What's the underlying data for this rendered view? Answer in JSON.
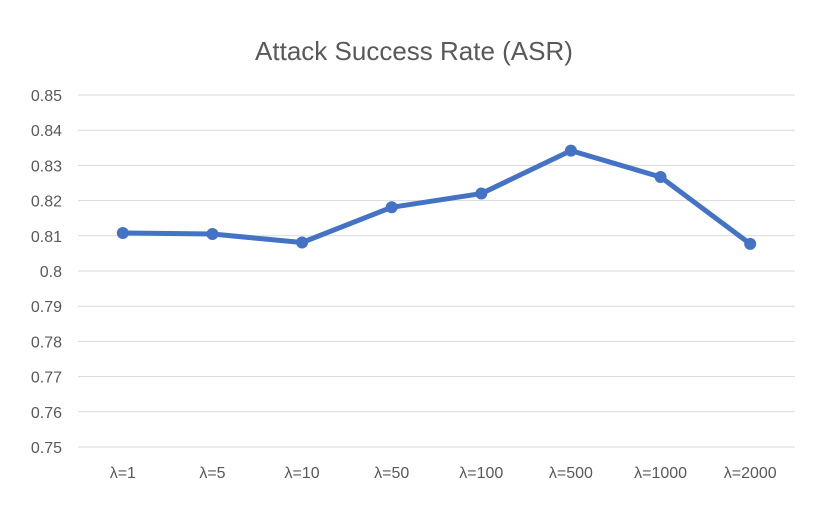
{
  "chart_data": {
    "type": "line",
    "title": "Attack Success Rate (ASR)",
    "xlabel": "",
    "ylabel": "",
    "categories": [
      "λ=1",
      "λ=5",
      "λ=10",
      "λ=50",
      "λ=100",
      "λ=500",
      "λ=1000",
      "λ=2000"
    ],
    "series": [
      {
        "color": "#4472c4",
        "values": [
          0.8108,
          0.8105,
          0.8081,
          0.8181,
          0.822,
          0.8342,
          0.8267,
          0.8077
        ]
      }
    ],
    "ylim": [
      0.75,
      0.85
    ],
    "yticks": [
      0.85,
      0.84,
      0.83,
      0.82,
      0.81,
      0.8,
      0.79,
      0.78,
      0.77,
      0.76,
      0.75
    ],
    "ytick_labels": [
      "0.85",
      "0.84",
      "0.83",
      "0.82",
      "0.81",
      "0.8",
      "0.79",
      "0.78",
      "0.77",
      "0.76",
      "0.75"
    ],
    "grid": true,
    "legend": "none"
  }
}
